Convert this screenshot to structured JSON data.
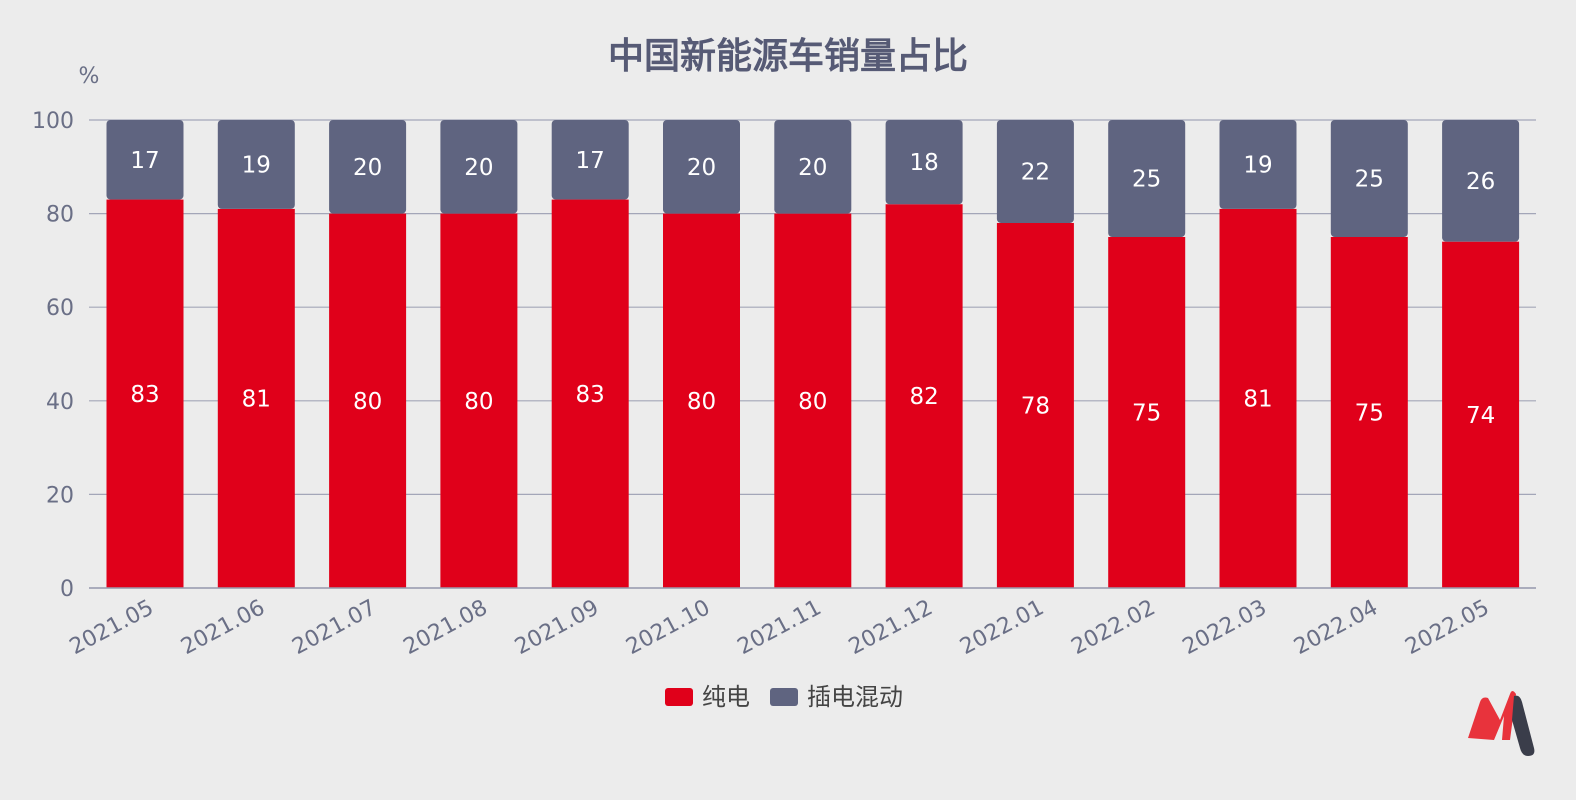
{
  "chart_data": {
    "type": "bar",
    "stacked": true,
    "title": "中国新能源车销量占比",
    "ylabel": "%",
    "xlabel": "",
    "ylim": [
      0,
      100
    ],
    "yticks": [
      0,
      20,
      40,
      60,
      80,
      100
    ],
    "grid": true,
    "legend_position": "bottom-center",
    "categories": [
      "2021.05",
      "2021.06",
      "2021.07",
      "2021.08",
      "2021.09",
      "2021.10",
      "2021.11",
      "2021.12",
      "2022.01",
      "2022.02",
      "2022.03",
      "2022.04",
      "2022.05"
    ],
    "series": [
      {
        "name": "纯电",
        "color": "#e0001a",
        "values": [
          83,
          81,
          80,
          80,
          83,
          80,
          80,
          82,
          78,
          75,
          81,
          75,
          74
        ]
      },
      {
        "name": "插电混动",
        "color": "#5f6480",
        "values": [
          17,
          19,
          20,
          20,
          17,
          20,
          20,
          18,
          22,
          25,
          19,
          25,
          26
        ]
      }
    ]
  },
  "logo": {
    "icon": "m-brand-logo-icon",
    "colors": [
      "#e8333c",
      "#3a3d4a"
    ]
  }
}
